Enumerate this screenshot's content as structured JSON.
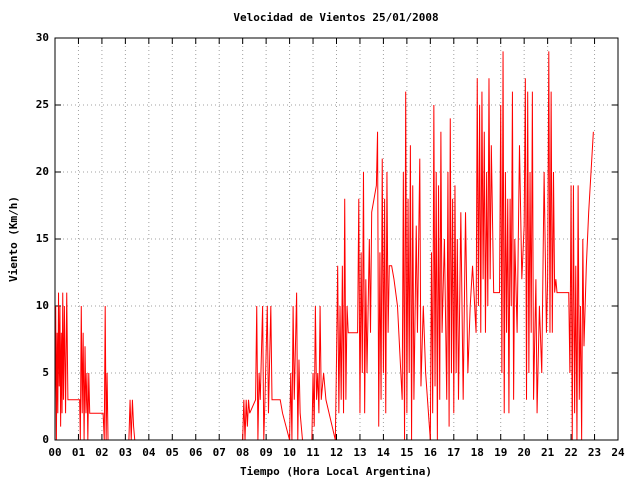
{
  "chart_data": {
    "type": "line",
    "title": "Velocidad de Vientos 25/01/2008",
    "x_label": "Tiempo (Hora Local Argentina)",
    "y_label": "Viento (Km/h)",
    "grid": true,
    "xlim": [
      0,
      24
    ],
    "ylim": [
      0,
      30
    ],
    "xticks": [
      {
        "value": 0,
        "label": "00"
      },
      {
        "value": 1,
        "label": "01"
      },
      {
        "value": 2,
        "label": "02"
      },
      {
        "value": 3,
        "label": "03"
      },
      {
        "value": 4,
        "label": "04"
      },
      {
        "value": 5,
        "label": "05"
      },
      {
        "value": 6,
        "label": "06"
      },
      {
        "value": 7,
        "label": "07"
      },
      {
        "value": 8,
        "label": "08"
      },
      {
        "value": 9,
        "label": "09"
      },
      10,
      11,
      12,
      13,
      14,
      15,
      16,
      17,
      18,
      19,
      20,
      21,
      22,
      23,
      24
    ],
    "yticks": [
      0,
      5,
      10,
      15,
      20,
      25,
      30
    ],
    "x": [
      0,
      0.03,
      0.06,
      0.09,
      0.12,
      0.15,
      0.18,
      0.21,
      0.24,
      0.27,
      0.3,
      0.33,
      0.36,
      0.4,
      0.45,
      0.5,
      0.55,
      0.6,
      1.05,
      1.08,
      1.12,
      1.16,
      1.2,
      1.24,
      1.28,
      1.32,
      1.36,
      1.4,
      1.44,
      1.48,
      2.05,
      2.1,
      2.14,
      2.18,
      2.22,
      2.26,
      3.15,
      3.2,
      3.25,
      3.3,
      3.35,
      3.4,
      8,
      8.05,
      8.1,
      8.15,
      8.2,
      8.25,
      8.3,
      8.55,
      8.6,
      8.65,
      8.7,
      8.75,
      8.85,
      8.9,
      8.95,
      9.05,
      9.1,
      9.2,
      9.25,
      9.6,
      9.7,
      10,
      10.05,
      10.1,
      10.15,
      10.2,
      10.3,
      10.35,
      10.4,
      10.45,
      10.55,
      10.95,
      11,
      11.05,
      11.1,
      11.15,
      11.2,
      11.25,
      11.3,
      11.35,
      11.45,
      11.55,
      11.95,
      12,
      12.05,
      12.1,
      12.15,
      12.2,
      12.25,
      12.3,
      12.35,
      12.4,
      12.45,
      12.5,
      12.9,
      12.95,
      13,
      13.05,
      13.1,
      13.15,
      13.2,
      13.25,
      13.3,
      13.4,
      13.45,
      13.5,
      13.7,
      13.75,
      13.8,
      13.85,
      13.9,
      13.95,
      14,
      14.05,
      14.1,
      14.15,
      14.2,
      14.25,
      14.35,
      14.45,
      14.6,
      14.8,
      14.85,
      14.9,
      14.95,
      15,
      15.05,
      15.1,
      15.15,
      15.2,
      15.25,
      15.3,
      15.4,
      15.45,
      15.55,
      15.6,
      15.7,
      15.8,
      16,
      16.05,
      16.1,
      16.15,
      16.2,
      16.25,
      16.3,
      16.35,
      16.4,
      16.45,
      16.5,
      16.6,
      16.7,
      16.75,
      16.8,
      16.85,
      16.9,
      16.95,
      17,
      17.05,
      17.1,
      17.15,
      17.2,
      17.3,
      17.4,
      17.5,
      17.6,
      17.7,
      17.8,
      17.95,
      18,
      18.05,
      18.1,
      18.15,
      18.2,
      18.25,
      18.3,
      18.35,
      18.4,
      18.45,
      18.5,
      18.55,
      18.6,
      18.7,
      18.95,
      19,
      19.05,
      19.1,
      19.15,
      19.2,
      19.25,
      19.3,
      19.35,
      19.4,
      19.45,
      19.5,
      19.55,
      19.6,
      19.7,
      19.8,
      19.9,
      20,
      20.05,
      20.1,
      20.15,
      20.2,
      20.25,
      20.3,
      20.35,
      20.4,
      20.5,
      20.55,
      20.65,
      20.75,
      20.85,
      20.95,
      21,
      21.05,
      21.1,
      21.15,
      21.2,
      21.25,
      21.3,
      21.35,
      21.4,
      21.9,
      21.95,
      22,
      22.05,
      22.1,
      22.15,
      22.2,
      22.25,
      22.3,
      22.35,
      22.4,
      22.45,
      22.5,
      22.55,
      22.65,
      22.75,
      22.85,
      22.95
    ],
    "series": [
      {
        "color": "#ff0000",
        "values": [
          3,
          10,
          0,
          8,
          2,
          11,
          4,
          10,
          1,
          8,
          2,
          11,
          3,
          10,
          2,
          11,
          3,
          3,
          3,
          0,
          10,
          2,
          8,
          0,
          7,
          2,
          5,
          0,
          5,
          2,
          2,
          0,
          10,
          0,
          5,
          0,
          0,
          3,
          0,
          3,
          1,
          0,
          0,
          3,
          0,
          3,
          1,
          3,
          2,
          3,
          10,
          0,
          5,
          3,
          10,
          0,
          3,
          10,
          2,
          10,
          3,
          3,
          2,
          0,
          5,
          0,
          10,
          3,
          11,
          0,
          6,
          2,
          0,
          0,
          5,
          1,
          10,
          3,
          5,
          2,
          10,
          3,
          5,
          3,
          0,
          6,
          13,
          2,
          10,
          3,
          13,
          2,
          18,
          3,
          10,
          8,
          8,
          18,
          2,
          14,
          5,
          20,
          2,
          12,
          5,
          15,
          8,
          17,
          19,
          23,
          1,
          14,
          3,
          21,
          5,
          18,
          2,
          20,
          8,
          13,
          13,
          12,
          10,
          3,
          20,
          0,
          26,
          2,
          18,
          5,
          22,
          0,
          19,
          3,
          16,
          8,
          21,
          4,
          10,
          5,
          0,
          14,
          2,
          25,
          4,
          20,
          0,
          19,
          3,
          23,
          8,
          15,
          3,
          20,
          1,
          24,
          5,
          18,
          2,
          19,
          5,
          15,
          3,
          17,
          3,
          17,
          5,
          10,
          13,
          8,
          27,
          10,
          25,
          8,
          26,
          12,
          23,
          8,
          20,
          10,
          27,
          12,
          22,
          11,
          11,
          25,
          5,
          29,
          2,
          20,
          8,
          18,
          2,
          18,
          10,
          26,
          3,
          15,
          8,
          22,
          12,
          16,
          27,
          3,
          26,
          5,
          20,
          8,
          26,
          3,
          12,
          2,
          10,
          5,
          20,
          8,
          12,
          29,
          8,
          26,
          8,
          20,
          11,
          12,
          11,
          11,
          5,
          19,
          0,
          19,
          2,
          13,
          0,
          19,
          3,
          10,
          0,
          15,
          7,
          13,
          17,
          20,
          23
        ]
      }
    ]
  }
}
